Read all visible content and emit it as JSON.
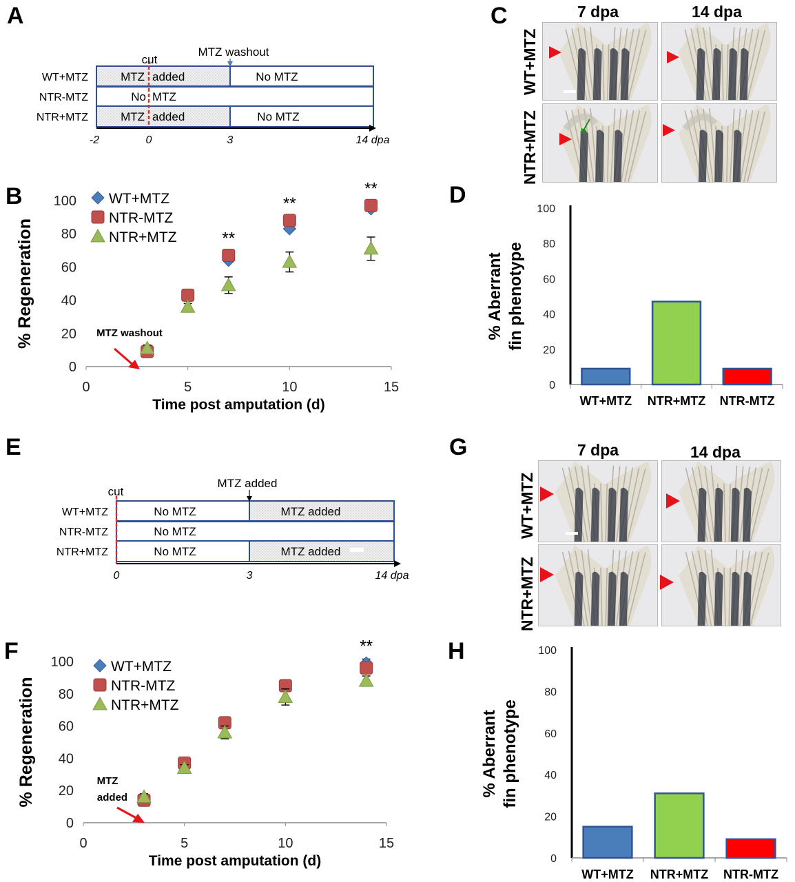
{
  "panels": {
    "A": "A",
    "B": "B",
    "C": "C",
    "D": "D",
    "E": "E",
    "F": "F",
    "G": "G",
    "H": "H"
  },
  "timeline_A": {
    "cut_label": "cut",
    "event_label": "MTZ washout",
    "rows": [
      {
        "label": "WT+MTZ",
        "seg1": "MTZ",
        "seg2": "added",
        "seg3": "No MTZ"
      },
      {
        "label": "NTR-MTZ",
        "seg1": "No",
        "seg2": "MTZ",
        "seg3": ""
      },
      {
        "label": "NTR+MTZ",
        "seg1": "MTZ",
        "seg2": "added",
        "seg3": "No MTZ"
      }
    ],
    "ticks": [
      "-2",
      "0",
      "3",
      "14 dpa"
    ]
  },
  "timeline_E": {
    "cut_label": "cut",
    "event_label": "MTZ added",
    "rows": [
      {
        "label": "WT+MTZ",
        "seg1": "No MTZ",
        "seg2": "MTZ  added"
      },
      {
        "label": "NTR-MTZ",
        "seg1": "No MTZ",
        "seg2": ""
      },
      {
        "label": "NTR+MTZ",
        "seg1": "No MTZ",
        "seg2": "MTZ  added"
      }
    ],
    "ticks": [
      "0",
      "3",
      "14 dpa"
    ]
  },
  "images": {
    "col1": "7 dpa",
    "col2": "14 dpa",
    "row1": "WT+MTZ",
    "row2": "NTR+MTZ"
  },
  "colors": {
    "wt": "#4a7ebb",
    "ntr_minus": "#c0504d",
    "ntr_plus": "#9bbb59",
    "bar_green": "#92d050",
    "bar_red": "#ff0000",
    "arrow_red": "#e8121b"
  },
  "chart_data": [
    {
      "id": "B",
      "type": "scatter",
      "xlabel": "Time post amputation (d)",
      "ylabel": "% Regeneration",
      "xlim": [
        0,
        15
      ],
      "ylim": [
        0,
        100
      ],
      "xticks": [
        "0",
        "5",
        "10",
        "15"
      ],
      "yticks": [
        "0",
        "20",
        "40",
        "60",
        "80",
        "100"
      ],
      "x": [
        3,
        5,
        7,
        10,
        14
      ],
      "series": [
        {
          "name": "WT+MTZ",
          "values": [
            9,
            42,
            64,
            83,
            95
          ]
        },
        {
          "name": "NTR-MTZ",
          "values": [
            9,
            43,
            67,
            88,
            97
          ]
        },
        {
          "name": "NTR+MTZ",
          "values": [
            11,
            36,
            49,
            63,
            71
          ],
          "err": [
            2,
            2,
            5,
            6,
            7
          ]
        }
      ],
      "annotation": "MTZ washout",
      "significance": [
        {
          "x": 7,
          "label": "**"
        },
        {
          "x": 10,
          "label": "**"
        },
        {
          "x": 14,
          "label": "**"
        }
      ],
      "legend": "top-left"
    },
    {
      "id": "D",
      "type": "bar",
      "ylabel": "% Aberrant fin phenotype",
      "ylim": [
        0,
        100
      ],
      "yticks": [
        "0",
        "20",
        "40",
        "60",
        "80",
        "100"
      ],
      "categories": [
        "WT+MTZ",
        "NTR+MTZ",
        "NTR-MTZ"
      ],
      "values": [
        9,
        47,
        9
      ]
    },
    {
      "id": "F",
      "type": "scatter",
      "xlabel": "Time post amputation (d)",
      "ylabel": "% Regeneration",
      "xlim": [
        0,
        15
      ],
      "ylim": [
        0,
        100
      ],
      "xticks": [
        "0",
        "5",
        "10",
        "15"
      ],
      "yticks": [
        "0",
        "20",
        "40",
        "60",
        "80",
        "100"
      ],
      "x": [
        3,
        5,
        7,
        10,
        14
      ],
      "series": [
        {
          "name": "WT+MTZ",
          "values": [
            14,
            36,
            61,
            85,
            99
          ]
        },
        {
          "name": "NTR-MTZ",
          "values": [
            14,
            37,
            62,
            85,
            96
          ]
        },
        {
          "name": "NTR+MTZ",
          "values": [
            16,
            34,
            56,
            78,
            88
          ],
          "err": [
            2,
            2,
            4,
            5,
            3
          ]
        }
      ],
      "annotation_line1": "MTZ",
      "annotation_line2": "added",
      "significance": [
        {
          "x": 14,
          "label": "**"
        }
      ],
      "legend": "top-left"
    },
    {
      "id": "H",
      "type": "bar",
      "ylabel": "% Aberrant fin phenotype",
      "ylim": [
        0,
        100
      ],
      "yticks": [
        "0",
        "20",
        "40",
        "60",
        "80",
        "100"
      ],
      "categories": [
        "WT+MTZ",
        "NTR+MTZ",
        "NTR-MTZ"
      ],
      "values": [
        15,
        31,
        9
      ]
    }
  ]
}
